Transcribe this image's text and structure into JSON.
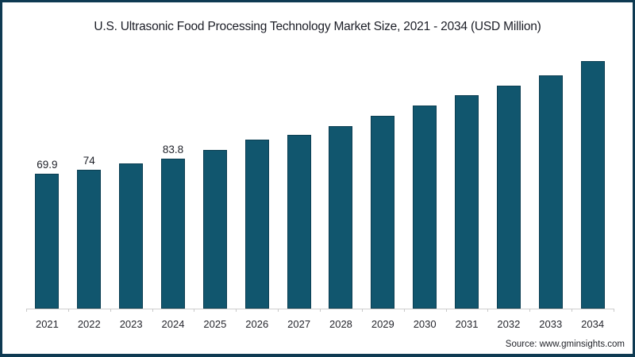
{
  "header": {
    "title": "U.S. Ultrasonic Food Processing Technology Market Size, 2021 - 2034 (USD Million)"
  },
  "footer": {
    "source": "Source: www.gminsights.com"
  },
  "colors": {
    "bar": "#11566e",
    "bar_border": "#0b3e52",
    "frame": "#0e3a52",
    "axis": "#cfcfcf"
  },
  "chart_data": {
    "type": "bar",
    "title": "U.S. Ultrasonic Food Processing Technology Market Size, 2021 - 2034 (USD Million)",
    "unit": "USD Million",
    "categories": [
      "2021",
      "2022",
      "2023",
      "2024",
      "2025",
      "2026",
      "2027",
      "2028",
      "2029",
      "2030",
      "2031",
      "2032",
      "2033",
      "2034"
    ],
    "values": [
      69.9,
      74,
      79.4,
      83.8,
      91.3,
      100.1,
      104.3,
      112.4,
      120.9,
      130.4,
      139.1,
      147.6,
      157.1,
      169.4
    ],
    "data_labels_shown": [
      "69.9",
      "74",
      "",
      "83.8",
      "",
      "",
      "",
      "",
      "",
      "",
      "",
      "",
      "",
      ""
    ],
    "xlabel": "",
    "ylabel": "",
    "y_axis_visible": false,
    "grid": false,
    "legend": "none",
    "bar_color": "#11566e"
  }
}
